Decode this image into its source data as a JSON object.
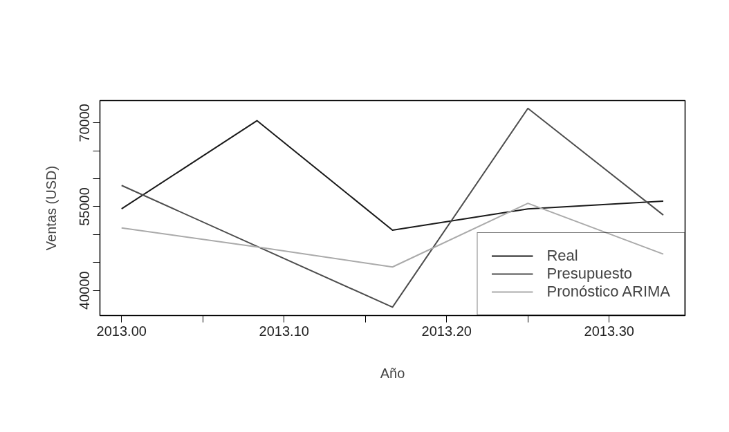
{
  "chart_data": {
    "type": "line",
    "xlabel": "Año",
    "ylabel": "Ventas (USD)",
    "x": [
      2013,
      2013.0833,
      2013.1667,
      2013.25,
      2013.3333
    ],
    "series": [
      {
        "name": "Real",
        "color": "#1a1a1a",
        "values": [
          54600,
          70400,
          50800,
          54600,
          56000
        ]
      },
      {
        "name": "Presupuesto",
        "color": "#4d4d4d",
        "values": [
          58800,
          47900,
          37000,
          72600,
          53500
        ]
      },
      {
        "name": "Pronóstico ARIMA",
        "color": "#aaaaaa",
        "values": [
          51200,
          47800,
          44200,
          55600,
          46500
        ]
      }
    ],
    "xlim": [
      2012.9867,
      2013.3467
    ],
    "xticks": [
      {
        "value": 2013,
        "label": "2013.00"
      },
      {
        "value": 2013.05,
        "label": null
      },
      {
        "value": 2013.1,
        "label": "2013.10"
      },
      {
        "value": 2013.15,
        "label": null
      },
      {
        "value": 2013.2,
        "label": "2013.20"
      },
      {
        "value": 2013.25,
        "label": null
      },
      {
        "value": 2013.3,
        "label": "2013.30"
      }
    ],
    "ylim": [
      35500,
      74000
    ],
    "yticks": [
      40000,
      {
        "value": 45000,
        "label": null
      },
      {
        "value": 50000,
        "label": null
      },
      55000,
      {
        "value": 60000,
        "label": null
      },
      {
        "value": 65000,
        "label": null
      },
      70000
    ],
    "grid": false,
    "legend": "bottom right",
    "marker": "none",
    "line_style": "solid"
  }
}
